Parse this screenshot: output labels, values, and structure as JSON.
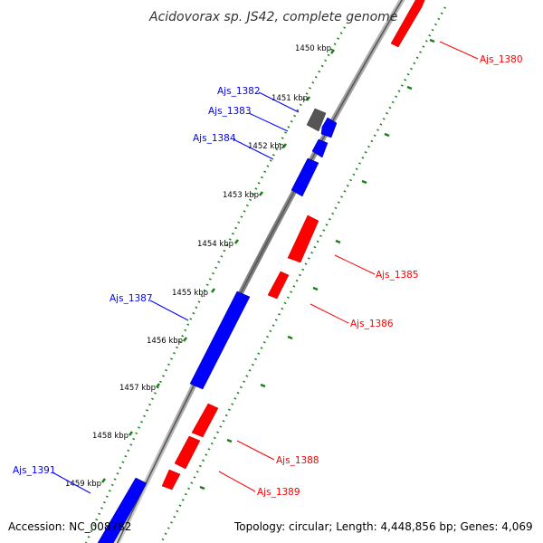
{
  "title": "Acidovorax sp. JS42, complete genome",
  "accession": "Accession: NC_008782",
  "summary": "Topology: circular; Length: 4,448,856 bp; Genes: 4,069",
  "kbp_labels": [
    "1450 kbp",
    "1451 kbp",
    "1452 kbp",
    "1453 kbp",
    "1454 kbp",
    "1455 kbp",
    "1456 kbp",
    "1457 kbp",
    "1458 kbp",
    "1459 kbp"
  ],
  "genes": {
    "ajs_1380": "Ajs_1380",
    "ajs_1382": "Ajs_1382",
    "ajs_1383": "Ajs_1383",
    "ajs_1384": "Ajs_1384",
    "ajs_1385": "Ajs_1385",
    "ajs_1386": "Ajs_1386",
    "ajs_1387": "Ajs_1387",
    "ajs_1388": "Ajs_1388",
    "ajs_1389": "Ajs_1389",
    "ajs_1391": "Ajs_1391"
  },
  "colors": {
    "forward": "#ff0000",
    "reverse": "#0000ff",
    "other": "#555555",
    "backbone": "#808080",
    "tick": "#1a7f1a"
  }
}
